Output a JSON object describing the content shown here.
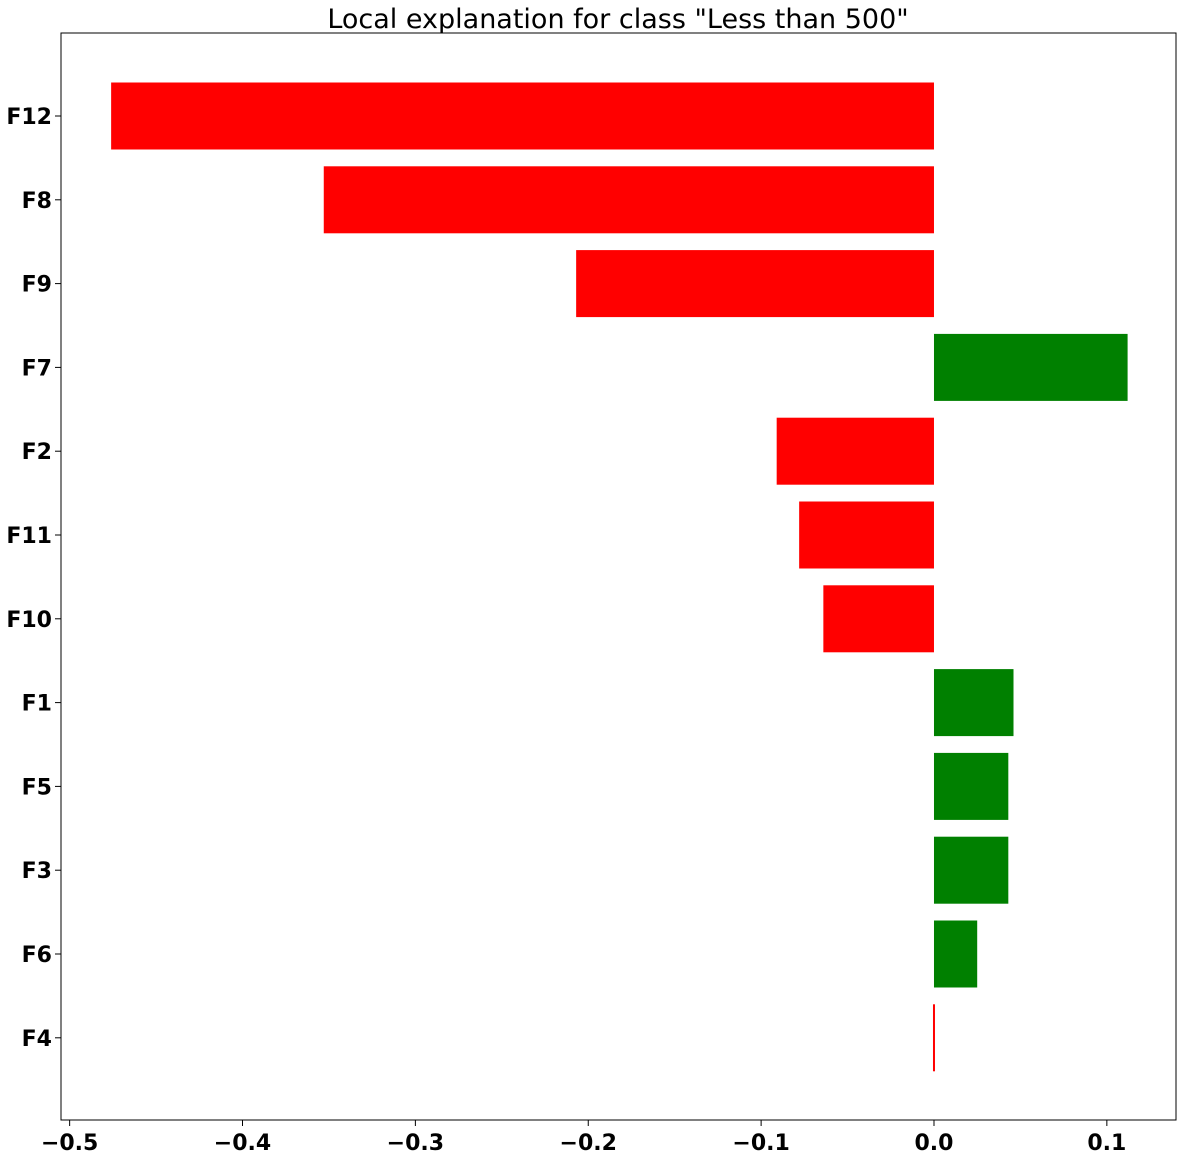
{
  "chart_data": {
    "type": "bar",
    "orientation": "horizontal",
    "title": "Local explanation for class \"Less than 500\"",
    "xlabel": "",
    "ylabel": "",
    "categories": [
      "F12",
      "F8",
      "F9",
      "F7",
      "F2",
      "F11",
      "F10",
      "F1",
      "F5",
      "F3",
      "F6",
      "F4"
    ],
    "values": [
      -0.476,
      -0.353,
      -0.207,
      0.112,
      -0.091,
      -0.078,
      -0.064,
      0.046,
      0.043,
      0.043,
      0.025,
      -0.001
    ],
    "xlim": [
      -0.505,
      0.14
    ],
    "xticks": [
      -0.5,
      -0.4,
      -0.3,
      -0.2,
      -0.1,
      0.0,
      0.1
    ],
    "xtick_labels": [
      "−0.5",
      "−0.4",
      "−0.3",
      "−0.2",
      "−0.1",
      "0.0",
      "0.1"
    ],
    "grid": false,
    "colors": {
      "positive": "#008000",
      "negative": "#ff0000"
    }
  }
}
